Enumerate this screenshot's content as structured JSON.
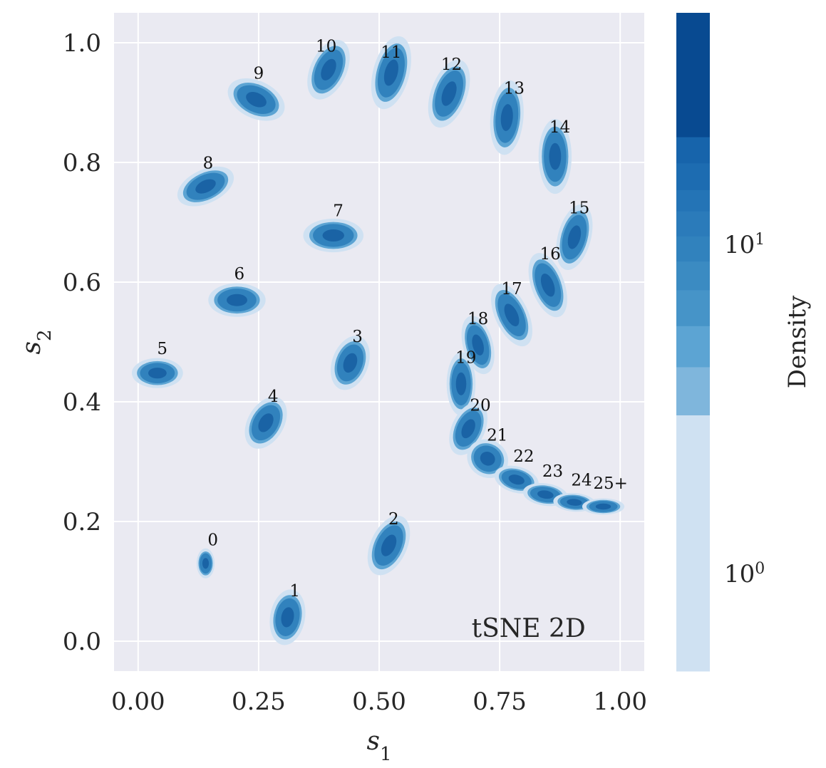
{
  "chart_data": {
    "type": "scatter",
    "subtype": "2D density (KDE) of tSNE embedding",
    "annotation": "tSNE 2D",
    "xlabel": "s",
    "xlabel_sub": "1",
    "ylabel": "s",
    "ylabel_sub": "2",
    "xlim": [
      -0.05,
      1.05
    ],
    "ylim": [
      -0.05,
      1.05
    ],
    "xticks": [
      0.0,
      0.25,
      0.5,
      0.75,
      1.0
    ],
    "xtick_labels": [
      "0.00",
      "0.25",
      "0.50",
      "0.75",
      "1.00"
    ],
    "yticks": [
      0.0,
      0.2,
      0.4,
      0.6,
      0.8,
      1.0
    ],
    "ytick_labels": [
      "0.0",
      "0.2",
      "0.4",
      "0.6",
      "0.8",
      "1.0"
    ],
    "grid": true,
    "colorbar": {
      "label": "Density",
      "scale": "log",
      "tick_labels": [
        {
          "base": "10",
          "exp": "0",
          "value": 1
        },
        {
          "base": "10",
          "exp": "1",
          "value": 10
        }
      ],
      "levels": [
        {
          "min": 0.5,
          "max": 3,
          "color": "#cfe1f2"
        },
        {
          "min": 3,
          "max": 4.2,
          "color": "#7fb6dc"
        },
        {
          "min": 4.2,
          "max": 5.6,
          "color": "#5ca4d3"
        },
        {
          "min": 5.6,
          "max": 7.2,
          "color": "#4694c8"
        },
        {
          "min": 7.2,
          "max": 8.8,
          "color": "#3b8bc2"
        },
        {
          "min": 8.8,
          "max": 10.5,
          "color": "#3182bd"
        },
        {
          "min": 10.5,
          "max": 12.5,
          "color": "#2b7bba"
        },
        {
          "min": 12.5,
          "max": 14.5,
          "color": "#2474b6"
        },
        {
          "min": 14.5,
          "max": 17.5,
          "color": "#1d6cb1"
        },
        {
          "min": 17.5,
          "max": 21,
          "color": "#1764ab"
        },
        {
          "min": 21,
          "max": 50,
          "color": "#084a91"
        }
      ]
    },
    "colors": {
      "plot_background": "#eaeaf2",
      "grid": "#ffffff",
      "light": "#cfe1f2",
      "mid": "#5ca4d3",
      "main": "#3182bd",
      "dark": "#084a91"
    },
    "clusters": [
      {
        "label": "0",
        "x": 0.14,
        "y": 0.13,
        "w": 0.03,
        "h": 0.04,
        "angle": 0,
        "label_x": 0.155,
        "label_y": 0.16
      },
      {
        "label": "1",
        "x": 0.31,
        "y": 0.04,
        "w": 0.058,
        "h": 0.075,
        "angle": -10,
        "label_x": 0.325,
        "label_y": 0.075
      },
      {
        "label": "2",
        "x": 0.52,
        "y": 0.16,
        "w": 0.06,
        "h": 0.085,
        "angle": -25,
        "label_x": 0.53,
        "label_y": 0.195
      },
      {
        "label": "3",
        "x": 0.44,
        "y": 0.465,
        "w": 0.06,
        "h": 0.075,
        "angle": -20,
        "label_x": 0.455,
        "label_y": 0.5
      },
      {
        "label": "4",
        "x": 0.265,
        "y": 0.365,
        "w": 0.06,
        "h": 0.075,
        "angle": -30,
        "label_x": 0.28,
        "label_y": 0.4
      },
      {
        "label": "5",
        "x": 0.04,
        "y": 0.448,
        "w": 0.085,
        "h": 0.04,
        "angle": 0,
        "label_x": 0.05,
        "label_y": 0.48
      },
      {
        "label": "6",
        "x": 0.205,
        "y": 0.57,
        "w": 0.095,
        "h": 0.045,
        "angle": 0,
        "label_x": 0.21,
        "label_y": 0.605
      },
      {
        "label": "7",
        "x": 0.405,
        "y": 0.678,
        "w": 0.1,
        "h": 0.045,
        "angle": 0,
        "label_x": 0.415,
        "label_y": 0.71
      },
      {
        "label": "8",
        "x": 0.14,
        "y": 0.76,
        "w": 0.1,
        "h": 0.045,
        "angle": 25,
        "label_x": 0.145,
        "label_y": 0.79
      },
      {
        "label": "9",
        "x": 0.245,
        "y": 0.905,
        "w": 0.1,
        "h": 0.05,
        "angle": -25,
        "label_x": 0.25,
        "label_y": 0.94
      },
      {
        "label": "10",
        "x": 0.395,
        "y": 0.955,
        "w": 0.06,
        "h": 0.085,
        "angle": -25,
        "label_x": 0.39,
        "label_y": 0.985
      },
      {
        "label": "11",
        "x": 0.525,
        "y": 0.95,
        "w": 0.06,
        "h": 0.1,
        "angle": -15,
        "label_x": 0.525,
        "label_y": 0.975
      },
      {
        "label": "12",
        "x": 0.645,
        "y": 0.915,
        "w": 0.06,
        "h": 0.095,
        "angle": -20,
        "label_x": 0.65,
        "label_y": 0.955
      },
      {
        "label": "13",
        "x": 0.765,
        "y": 0.875,
        "w": 0.055,
        "h": 0.1,
        "angle": -5,
        "label_x": 0.78,
        "label_y": 0.915
      },
      {
        "label": "14",
        "x": 0.865,
        "y": 0.81,
        "w": 0.055,
        "h": 0.1,
        "angle": 0,
        "label_x": 0.875,
        "label_y": 0.85
      },
      {
        "label": "15",
        "x": 0.905,
        "y": 0.675,
        "w": 0.055,
        "h": 0.09,
        "angle": -15,
        "label_x": 0.915,
        "label_y": 0.715
      },
      {
        "label": "16",
        "x": 0.85,
        "y": 0.595,
        "w": 0.055,
        "h": 0.09,
        "angle": 20,
        "label_x": 0.855,
        "label_y": 0.638
      },
      {
        "label": "17",
        "x": 0.775,
        "y": 0.545,
        "w": 0.055,
        "h": 0.09,
        "angle": 25,
        "label_x": 0.775,
        "label_y": 0.58
      },
      {
        "label": "18",
        "x": 0.705,
        "y": 0.495,
        "w": 0.05,
        "h": 0.08,
        "angle": 15,
        "label_x": 0.705,
        "label_y": 0.53
      },
      {
        "label": "19",
        "x": 0.67,
        "y": 0.43,
        "w": 0.048,
        "h": 0.085,
        "angle": 0,
        "label_x": 0.68,
        "label_y": 0.465
      },
      {
        "label": "20",
        "x": 0.685,
        "y": 0.355,
        "w": 0.055,
        "h": 0.075,
        "angle": -25,
        "label_x": 0.71,
        "label_y": 0.385
      },
      {
        "label": "21",
        "x": 0.725,
        "y": 0.305,
        "w": 0.07,
        "h": 0.05,
        "angle": -30,
        "label_x": 0.745,
        "label_y": 0.335
      },
      {
        "label": "22",
        "x": 0.785,
        "y": 0.27,
        "w": 0.075,
        "h": 0.035,
        "angle": -15,
        "label_x": 0.8,
        "label_y": 0.3
      },
      {
        "label": "23",
        "x": 0.845,
        "y": 0.245,
        "w": 0.075,
        "h": 0.03,
        "angle": -8,
        "label_x": 0.86,
        "label_y": 0.275
      },
      {
        "label": "24",
        "x": 0.905,
        "y": 0.232,
        "w": 0.07,
        "h": 0.025,
        "angle": -4,
        "label_x": 0.92,
        "label_y": 0.26
      },
      {
        "label": "25+",
        "x": 0.965,
        "y": 0.225,
        "w": 0.07,
        "h": 0.022,
        "angle": 0,
        "label_x": 0.98,
        "label_y": 0.255
      }
    ]
  }
}
